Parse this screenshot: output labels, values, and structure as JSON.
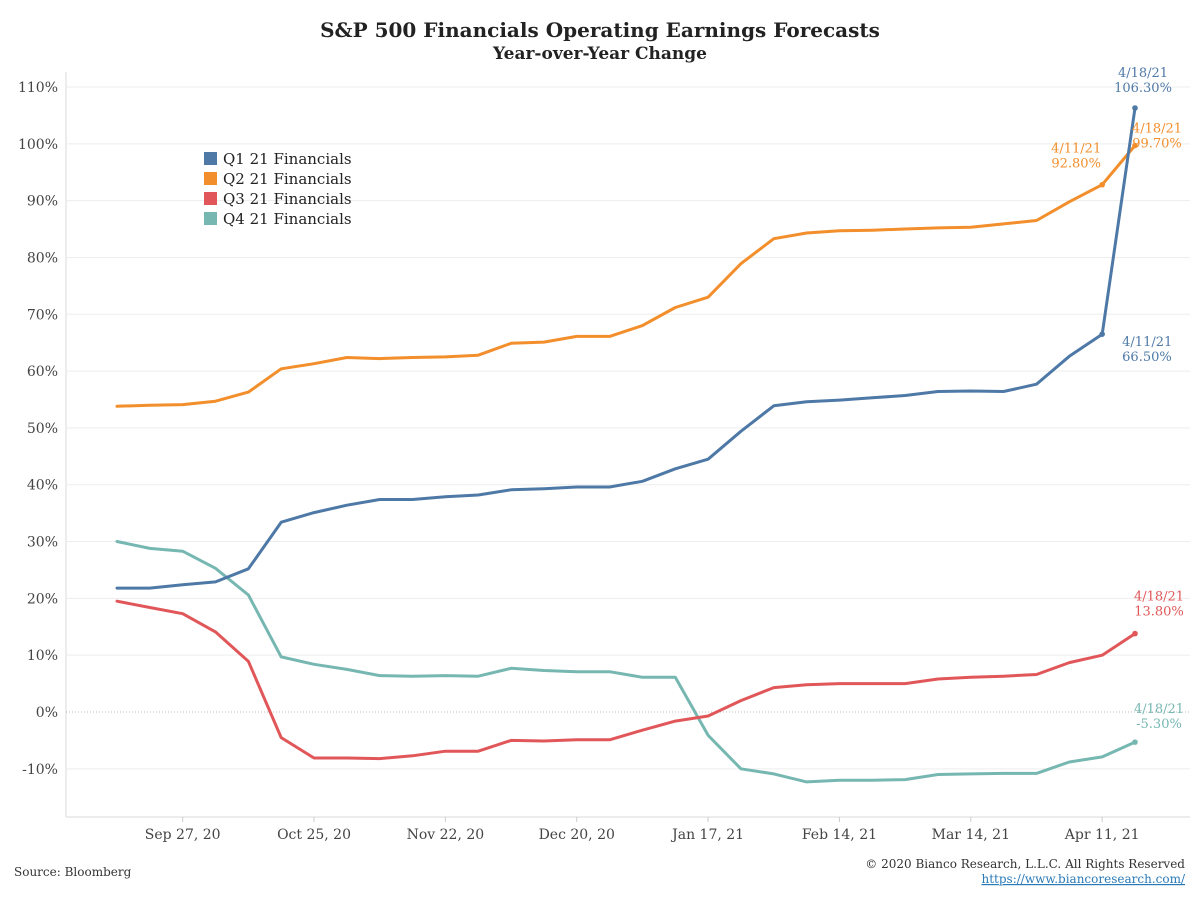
{
  "title": "S&P 500 Financials Operating Earnings Forecasts",
  "subtitle": "Year-over-Year Change",
  "source": "Source: Bloomberg",
  "copyright": "© 2020 Bianco Research, L.L.C. All Rights Reserved",
  "url": "https://www.biancoresearch.com/",
  "chart_data": {
    "type": "line",
    "title": "S&P 500 Financials Operating Earnings Forecasts",
    "subtitle": "Year-over-Year Change",
    "xlabel": "",
    "ylabel": "",
    "ylim": [
      -18,
      110
    ],
    "y_ticks": [
      -10,
      0,
      10,
      20,
      30,
      40,
      50,
      60,
      70,
      80,
      90,
      100,
      110
    ],
    "y_tick_labels": [
      "-10%",
      "0%",
      "10%",
      "20%",
      "30%",
      "40%",
      "50%",
      "60%",
      "70%",
      "80%",
      "90%",
      "100%",
      "110%"
    ],
    "x": [
      "2020-09-13",
      "2020-09-20",
      "2020-09-27",
      "2020-10-04",
      "2020-10-11",
      "2020-10-18",
      "2020-10-25",
      "2020-11-01",
      "2020-11-08",
      "2020-11-15",
      "2020-11-22",
      "2020-11-29",
      "2020-12-06",
      "2020-12-13",
      "2020-12-20",
      "2020-12-27",
      "2021-01-03",
      "2021-01-10",
      "2021-01-17",
      "2021-01-24",
      "2021-01-31",
      "2021-02-07",
      "2021-02-14",
      "2021-02-21",
      "2021-02-28",
      "2021-03-07",
      "2021-03-14",
      "2021-03-21",
      "2021-03-28",
      "2021-04-04",
      "2021-04-11",
      "2021-04-18"
    ],
    "x_tick_labels": [
      "Sep 27, 20",
      "Oct 25, 20",
      "Nov 22, 20",
      "Dec 20, 20",
      "Jan 17, 21",
      "Feb 14, 21",
      "Mar 14, 21",
      "Apr 11, 21"
    ],
    "x_tick_dates": [
      "2020-09-27",
      "2020-10-25",
      "2020-11-22",
      "2020-12-20",
      "2021-01-17",
      "2021-02-14",
      "2021-03-14",
      "2021-04-11"
    ],
    "grid": true,
    "legend_position": "top-left",
    "series": [
      {
        "name": "Q1 21 Financials",
        "color": "#4e79a7",
        "values": [
          21.8,
          21.8,
          22.4,
          22.9,
          25.2,
          33.4,
          35.1,
          36.4,
          37.4,
          37.4,
          37.9,
          38.2,
          39.1,
          39.3,
          39.6,
          39.6,
          40.6,
          42.8,
          44.5,
          49.4,
          53.9,
          54.6,
          54.9,
          55.3,
          55.7,
          56.4,
          56.5,
          56.4,
          57.7,
          62.6,
          66.5,
          106.3
        ]
      },
      {
        "name": "Q2 21 Financials",
        "color": "#f28e2b",
        "values": [
          53.8,
          54.0,
          54.1,
          54.7,
          56.3,
          60.4,
          61.3,
          62.4,
          62.2,
          62.4,
          62.5,
          62.8,
          64.9,
          65.1,
          66.1,
          66.1,
          68.0,
          71.2,
          73.0,
          78.9,
          83.3,
          84.3,
          84.7,
          84.8,
          85.0,
          85.2,
          85.3,
          85.9,
          86.5,
          89.8,
          92.8,
          99.7
        ]
      },
      {
        "name": "Q3 21 Financials",
        "color": "#e15759",
        "values": [
          19.5,
          18.4,
          17.3,
          14.1,
          8.9,
          -4.5,
          -8.1,
          -8.1,
          -8.2,
          -7.7,
          -6.9,
          -6.9,
          -5.0,
          -5.1,
          -4.9,
          -4.9,
          -3.2,
          -1.6,
          -0.7,
          2.0,
          4.3,
          4.8,
          5.0,
          5.0,
          5.0,
          5.8,
          6.1,
          6.3,
          6.6,
          8.7,
          10.0,
          13.8
        ]
      },
      {
        "name": "Q4 21 Financials",
        "color": "#76b7b2",
        "values": [
          30.0,
          28.8,
          28.3,
          25.3,
          20.6,
          9.7,
          8.4,
          7.5,
          6.4,
          6.3,
          6.4,
          6.3,
          7.7,
          7.3,
          7.1,
          7.1,
          6.1,
          6.1,
          -4.1,
          -10.0,
          -10.9,
          -12.3,
          -12.0,
          -12.0,
          -11.9,
          -11.0,
          -10.9,
          -10.8,
          -10.8,
          -8.8,
          -7.9,
          -5.3
        ]
      }
    ],
    "annotations": [
      {
        "series": 0,
        "date": "4/18/21",
        "value": "106.30%",
        "index": 31
      },
      {
        "series": 0,
        "date": "4/11/21",
        "value": "66.50%",
        "index": 30
      },
      {
        "series": 1,
        "date": "4/18/21",
        "value": "99.70%",
        "index": 31
      },
      {
        "series": 1,
        "date": "4/11/21",
        "value": "92.80%",
        "index": 30
      },
      {
        "series": 2,
        "date": "4/18/21",
        "value": "13.80%",
        "index": 31
      },
      {
        "series": 3,
        "date": "4/18/21",
        "value": "-5.30%",
        "index": 31
      }
    ]
  }
}
